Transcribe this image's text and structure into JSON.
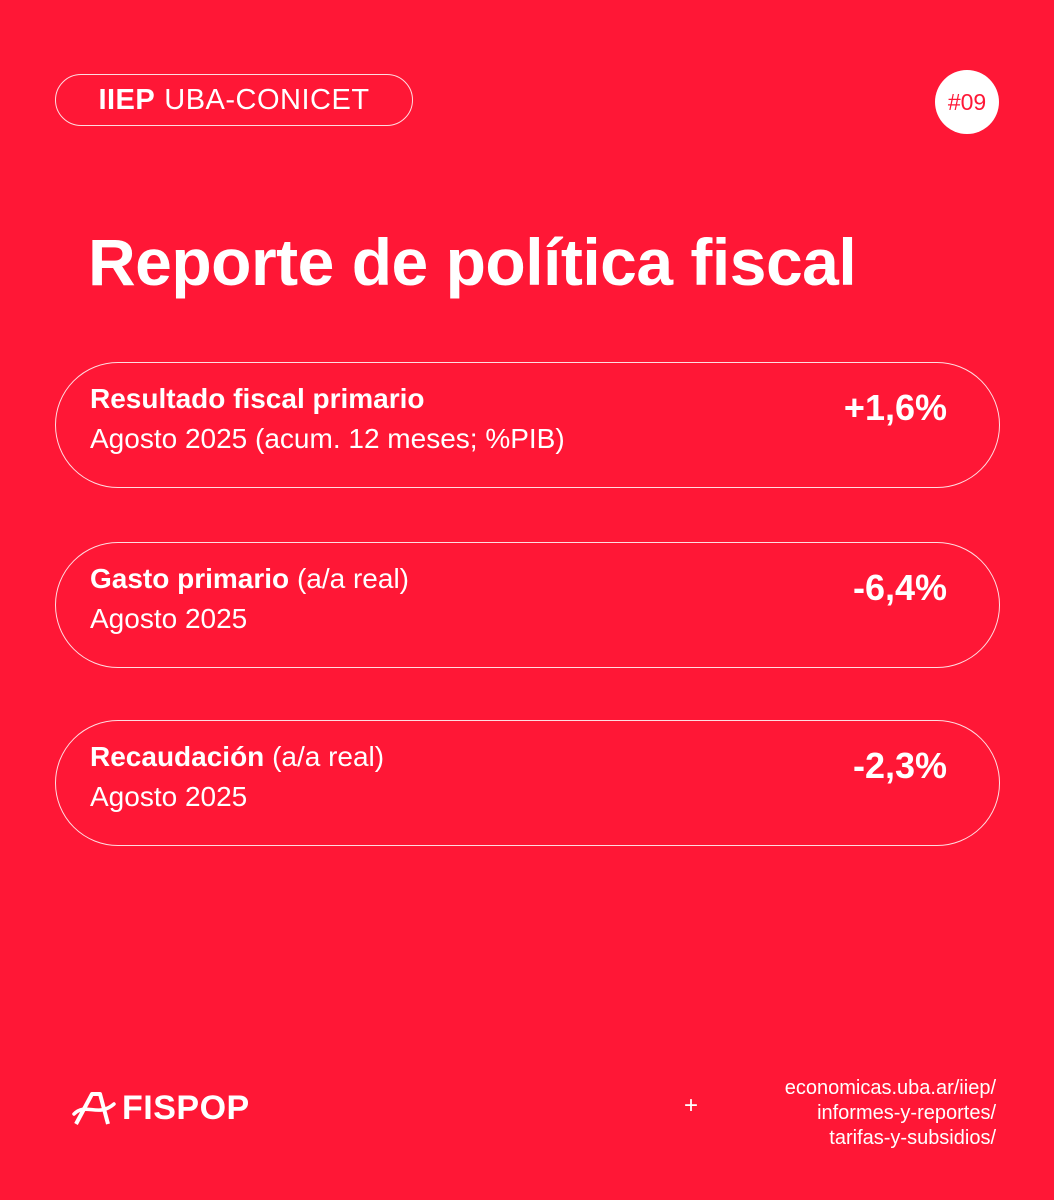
{
  "header": {
    "org_bold": "IIEP",
    "org_rest": "UBA-CONICET",
    "issue_number": "#09"
  },
  "title": "Reporte de política fiscal",
  "cards": [
    {
      "label_bold": "Resultado fiscal primario",
      "label_rest": "",
      "subtitle": "Agosto 2025 (acum. 12 meses; %PIB)",
      "value": "+1,6%"
    },
    {
      "label_bold": "Gasto primario",
      "label_rest": " (a/a real)",
      "subtitle": "Agosto 2025",
      "value": "-6,4%"
    },
    {
      "label_bold": "Recaudación",
      "label_rest": "(a/a real)",
      "subtitle": "Agosto 2025",
      "value": "-2,3%"
    }
  ],
  "footer": {
    "logo_text": "FISPOP",
    "logo_icon": "fispop-logo-icon",
    "plus": "+",
    "url_lines": [
      "economicas.uba.ar/iiep/",
      "informes-y-reportes/",
      "tarifas-y-subsidios/"
    ]
  },
  "colors": {
    "background": "#ff1736",
    "foreground": "#ffffff"
  }
}
